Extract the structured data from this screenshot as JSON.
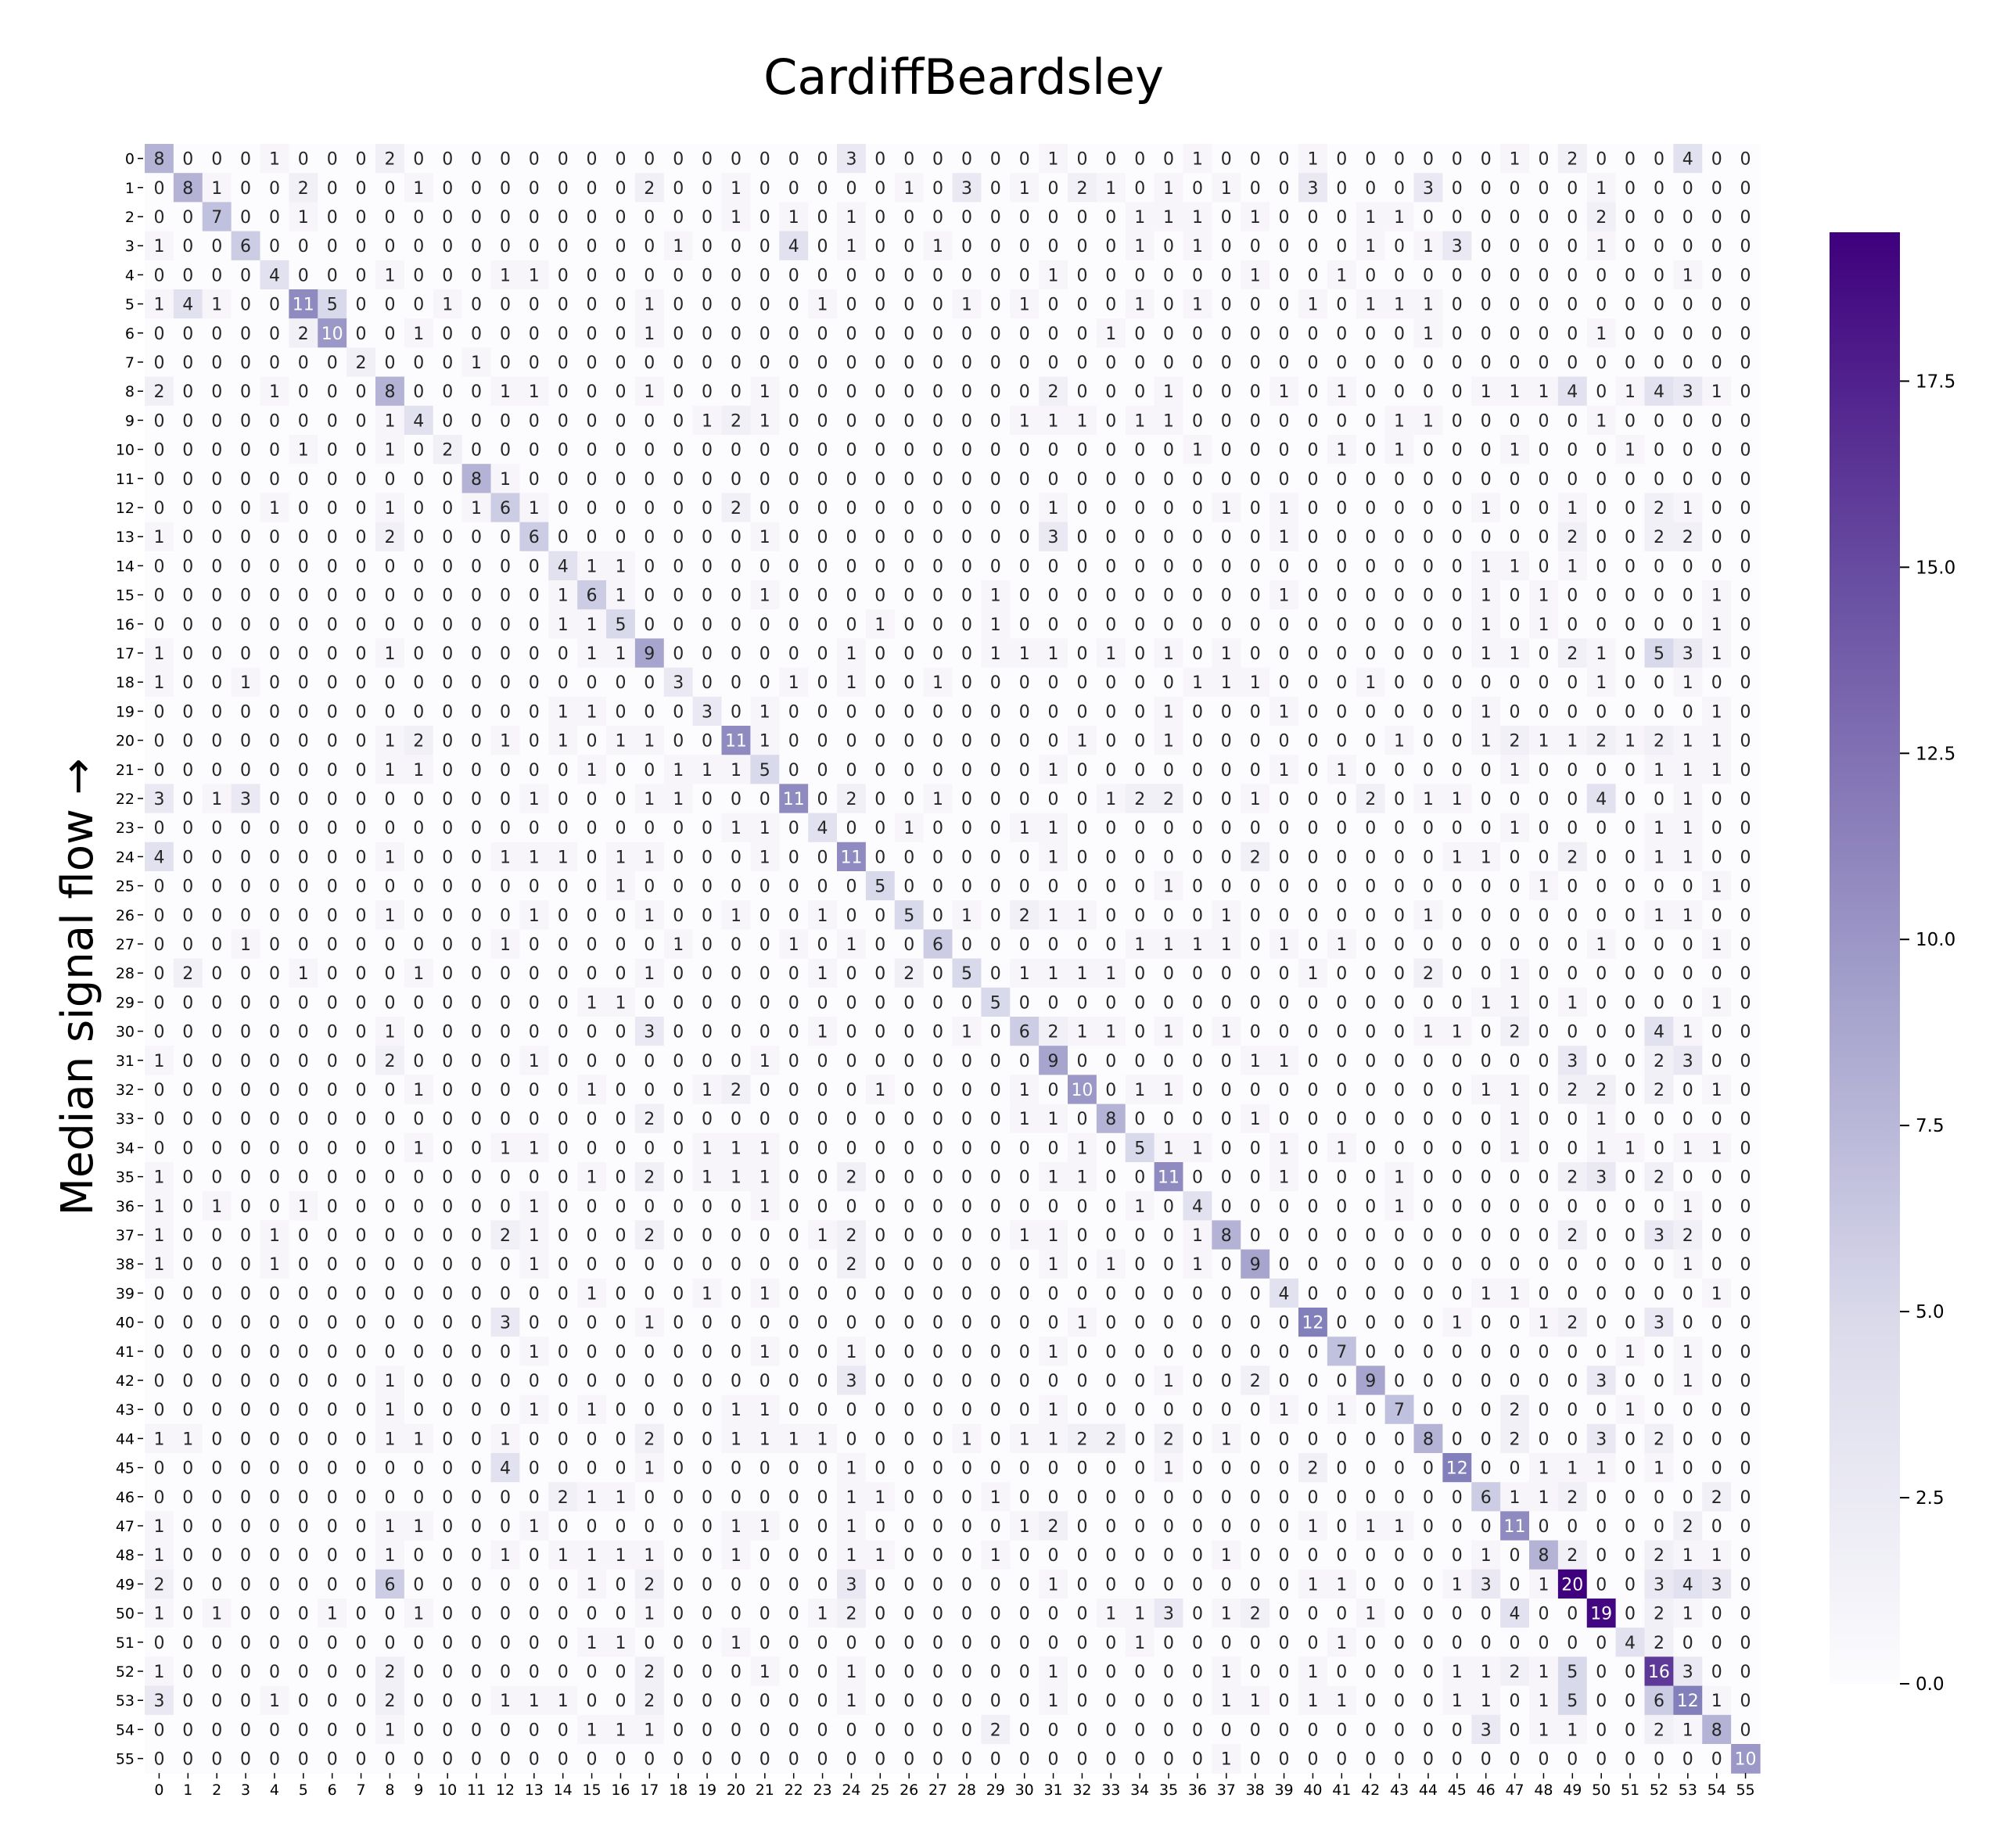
{
  "chart_data": {
    "type": "heatmap",
    "title": "CardiffBeardsley",
    "xlabel": "",
    "ylabel": "Median signal flow →",
    "x_labels": [
      "0",
      "1",
      "2",
      "3",
      "4",
      "5",
      "6",
      "7",
      "8",
      "9",
      "10",
      "11",
      "12",
      "13",
      "14",
      "15",
      "16",
      "17",
      "18",
      "19",
      "20",
      "21",
      "22",
      "23",
      "24",
      "25",
      "26",
      "27",
      "28",
      "29",
      "30",
      "31",
      "32",
      "33",
      "34",
      "35",
      "36",
      "37",
      "38",
      "39",
      "40",
      "41",
      "42",
      "43",
      "44",
      "45",
      "46",
      "47",
      "48",
      "49",
      "50",
      "51",
      "52",
      "53",
      "54",
      "55"
    ],
    "y_labels": [
      "0",
      "1",
      "2",
      "3",
      "4",
      "5",
      "6",
      "7",
      "8",
      "9",
      "10",
      "11",
      "12",
      "13",
      "14",
      "15",
      "16",
      "17",
      "18",
      "19",
      "20",
      "21",
      "22",
      "23",
      "24",
      "25",
      "26",
      "27",
      "28",
      "29",
      "30",
      "31",
      "32",
      "33",
      "34",
      "35",
      "36",
      "37",
      "38",
      "39",
      "40",
      "41",
      "42",
      "43",
      "44",
      "45",
      "46",
      "47",
      "48",
      "49",
      "50",
      "51",
      "52",
      "53",
      "54",
      "55"
    ],
    "colormap": "Purples",
    "color_low": "#fcfbfd",
    "color_high": "#3f007d",
    "vmin": 0,
    "vmax": 19.5,
    "colorbar_ticks": [
      "0.0",
      "2.5",
      "5.0",
      "7.5",
      "10.0",
      "12.5",
      "15.0",
      "17.5"
    ],
    "colorbar_values": [
      0,
      2.5,
      5,
      7.5,
      10,
      12.5,
      15,
      17.5
    ],
    "matrix": [
      "8 0 0 0 1 0 0 0 2 0 0 0 0 0 0 0 0 0 0 0 0 0 0 0 3 0 0 0 0 0 0 1 0 0 0 0 1 0 0 0 1 0 0 0 0 0 0 1 0 2 0 0 0 4 0 0",
      "0 8 1 0 0 2 0 0 0 1 0 0 0 0 0 0 0 2 0 0 1 0 0 0 0 0 1 0 3 0 1 0 2 1 0 1 0 1 0 0 3 0 0 0 3 0 0 0 0 0 1 0 0 0 0 0",
      "0 0 7 0 0 1 0 0 0 0 0 0 0 0 0 0 0 0 0 0 1 0 1 0 1 0 0 0 0 0 0 0 0 0 1 1 1 0 1 0 0 0 1 1 0 0 0 0 0 0 2 0 0 0 0 0",
      "1 0 0 6 0 0 0 0 0 0 0 0 0 0 0 0 0 0 1 0 0 0 4 0 1 0 0 1 0 0 0 0 0 0 1 0 1 0 0 0 0 0 1 0 1 3 0 0 0 0 1 0 0 0 0 0",
      "0 0 0 0 4 0 0 0 1 0 0 0 1 1 0 0 0 0 0 0 0 0 0 0 0 0 0 0 0 0 0 1 0 0 0 0 0 0 1 0 0 1 0 0 0 0 0 0 0 0 0 0 0 1 0 0",
      "1 4 1 0 0 11 5 0 0 0 1 0 0 0 0 0 0 1 0 0 0 0 0 1 0 0 0 0 1 0 1 0 0 0 1 0 1 0 0 0 1 0 1 1 1 0 0 0 0 0 0 0 0 0 0 0",
      "0 0 0 0 0 2 10 0 0 1 0 0 0 0 0 0 0 1 0 0 0 0 0 0 0 0 0 0 0 0 0 0 0 1 0 0 0 0 0 0 0 0 0 0 1 0 0 0 0 0 1 0 0 0 0 0",
      "0 0 0 0 0 0 0 2 0 0 0 1 0 0 0 0 0 0 0 0 0 0 0 0 0 0 0 0 0 0 0 0 0 0 0 0 0 0 0 0 0 0 0 0 0 0 0 0 0 0 0 0 0 0 0 0",
      "2 0 0 0 1 0 0 0 8 0 0 0 1 1 0 0 0 1 0 0 0 1 0 0 0 0 0 0 0 0 0 2 0 0 0 1 0 0 0 1 0 1 0 0 0 0 1 1 1 4 0 1 4 3 1 0",
      "0 0 0 0 0 0 0 0 1 4 0 0 0 0 0 0 0 0 0 1 2 1 0 0 0 0 0 0 0 0 1 1 1 0 1 1 0 0 0 0 0 0 0 1 1 0 0 0 0 0 1 0 0 0 0 0",
      "0 0 0 0 0 1 0 0 1 0 2 0 0 0 0 0 0 0 0 0 0 0 0 0 0 0 0 0 0 0 0 0 0 0 0 0 1 0 0 0 0 1 0 1 0 0 0 1 0 0 0 1 0 0 0 0",
      "0 0 0 0 0 0 0 0 0 0 0 8 1 0 0 0 0 0 0 0 0 0 0 0 0 0 0 0 0 0 0 0 0 0 0 0 0 0 0 0 0 0 0 0 0 0 0 0 0 0 0 0 0 0 0 0",
      "0 0 0 0 1 0 0 0 1 0 0 1 6 1 0 0 0 0 0 0 2 0 0 0 0 0 0 0 0 0 0 1 0 0 0 0 0 1 0 1 0 0 0 0 0 0 1 0 0 1 0 0 2 1 0 0",
      "1 0 0 0 0 0 0 0 2 0 0 0 0 6 0 0 0 0 0 0 0 1 0 0 0 0 0 0 0 0 0 3 0 0 0 0 0 0 0 1 0 0 0 0 0 0 0 0 0 2 0 0 2 2 0 0",
      "0 0 0 0 0 0 0 0 0 0 0 0 0 0 4 1 1 0 0 0 0 0 0 0 0 0 0 0 0 0 0 0 0 0 0 0 0 0 0 0 0 0 0 0 0 0 1 1 0 1 0 0 0 0 0 0",
      "0 0 0 0 0 0 0 0 0 0 0 0 0 0 1 6 1 0 0 0 0 1 0 0 0 0 0 0 0 1 0 0 0 0 0 0 0 0 0 1 0 0 0 0 0 0 1 0 1 0 0 0 0 0 1 0",
      "0 0 0 0 0 0 0 0 0 0 0 0 0 0 1 1 5 0 0 0 0 0 0 0 0 1 0 0 0 1 0 0 0 0 0 0 0 0 0 0 0 0 0 0 0 0 1 0 1 0 0 0 0 0 1 0",
      "1 0 0 0 0 0 0 0 1 0 0 0 0 0 0 1 1 9 0 0 0 0 0 0 1 0 0 0 0 1 1 1 0 1 0 1 0 1 0 0 0 0 0 0 0 0 1 1 0 2 1 0 5 3 1 0",
      "1 0 0 1 0 0 0 0 0 0 0 0 0 0 0 0 0 0 3 0 0 0 1 0 1 0 0 1 0 0 0 0 0 0 0 0 1 1 1 0 0 0 1 0 0 0 0 0 0 0 1 0 0 1 0 0",
      "0 0 0 0 0 0 0 0 0 0 0 0 0 0 1 1 0 0 0 3 0 1 0 0 0 0 0 0 0 0 0 0 0 0 0 1 0 0 0 1 0 0 0 0 0 0 1 0 0 0 0 0 0 0 1 0",
      "0 0 0 0 0 0 0 0 1 2 0 0 1 0 1 0 1 1 0 0 11 1 0 0 0 0 0 0 0 0 0 0 1 0 0 1 0 0 0 0 0 0 0 1 0 0 1 2 1 1 2 1 2 1 1 0",
      "0 0 0 0 0 0 0 0 1 1 0 0 0 0 0 1 0 0 1 1 1 5 0 0 0 0 0 0 0 0 0 1 0 0 0 0 0 0 0 1 0 1 0 0 0 0 0 1 0 0 0 0 1 1 1 0",
      "3 0 1 3 0 0 0 0 0 0 0 0 0 1 0 0 0 1 1 0 0 0 11 0 2 0 0 1 0 0 0 0 0 1 2 2 0 0 1 0 0 0 2 0 1 1 0 0 0 0 4 0 0 1 0 0",
      "0 0 0 0 0 0 0 0 0 0 0 0 0 0 0 0 0 0 0 0 1 1 0 4 0 0 1 0 0 0 1 1 0 0 0 0 0 0 0 0 0 0 0 0 0 0 0 1 0 0 0 0 1 1 0 0",
      "4 0 0 0 0 0 0 0 1 0 0 0 1 1 1 0 1 1 0 0 0 1 0 0 11 0 0 0 0 0 0 1 0 0 0 0 0 0 2 0 0 0 0 0 0 1 1 0 0 2 0 0 1 1 0 0",
      "0 0 0 0 0 0 0 0 0 0 0 0 0 0 0 0 1 0 0 0 0 0 0 0 0 5 0 0 0 0 0 0 0 0 0 1 0 0 0 0 0 0 0 0 0 0 0 0 1 0 0 0 0 0 1 0",
      "0 0 0 0 0 0 0 0 1 0 0 0 0 1 0 0 0 1 0 0 1 0 0 1 0 0 5 0 1 0 2 1 1 0 0 0 0 1 0 0 0 0 0 0 1 0 0 0 0 0 0 0 1 1 0 0",
      "0 0 0 1 0 0 0 0 0 0 0 0 1 0 0 0 0 0 1 0 0 0 1 0 1 0 0 6 0 0 0 0 0 0 1 1 1 1 0 1 0 1 0 0 0 0 0 0 0 0 1 0 0 0 1 0",
      "0 2 0 0 0 1 0 0 0 1 0 0 0 0 0 0 0 1 0 0 0 0 0 1 0 0 2 0 5 0 1 1 1 1 0 0 0 0 0 0 1 0 0 0 2 0 0 1 0 0 0 0 0 0 0 0",
      "0 0 0 0 0 0 0 0 0 0 0 0 0 0 0 1 1 0 0 0 0 0 0 0 0 0 0 0 0 5 0 0 0 0 0 0 0 0 0 0 0 0 0 0 0 0 1 1 0 1 0 0 0 0 1 0",
      "0 0 0 0 0 0 0 0 1 0 0 0 0 0 0 0 0 3 0 0 0 0 0 1 0 0 0 0 1 0 6 2 1 1 0 1 0 1 0 0 0 0 0 0 1 1 0 2 0 0 0 0 4 1 0 0",
      "1 0 0 0 0 0 0 0 2 0 0 0 0 1 0 0 0 0 0 0 0 1 0 0 0 0 0 0 0 0 0 9 0 0 0 0 0 0 1 1 0 0 0 0 0 0 0 0 0 3 0 0 2 3 0 0",
      "0 0 0 0 0 0 0 0 0 1 0 0 0 0 0 1 0 0 0 1 2 0 0 0 0 1 0 0 0 0 1 0 10 0 1 1 0 0 0 0 0 0 0 0 0 0 1 1 0 2 2 0 2 0 1 0",
      "0 0 0 0 0 0 0 0 0 0 0 0 0 0 0 0 0 2 0 0 0 0 0 0 0 0 0 0 0 0 1 1 0 8 0 0 0 0 1 0 0 0 0 0 0 0 0 1 0 0 1 0 0 0 0 0",
      "0 0 0 0 0 0 0 0 0 1 0 0 1 1 0 0 0 0 0 1 1 1 0 0 0 0 0 0 0 0 0 0 1 0 5 1 1 0 0 1 0 1 0 0 0 0 0 1 0 0 1 1 0 1 1 0",
      "1 0 0 0 0 0 0 0 0 0 0 0 0 0 0 1 0 2 0 1 1 1 0 0 2 0 0 0 0 0 0 1 1 0 0 11 0 0 0 1 0 0 0 1 0 0 0 0 0 2 3 0 2 0 0 0",
      "1 0 1 0 0 1 0 0 0 0 0 0 0 1 0 0 0 0 0 0 0 1 0 0 0 0 0 0 0 0 0 0 0 0 1 0 4 0 0 0 0 0 0 1 0 0 0 0 0 0 0 0 0 1 0 0",
      "1 0 0 0 1 0 0 0 0 0 0 0 2 1 0 0 0 2 0 0 0 0 0 1 2 0 0 0 0 0 1 1 0 0 0 0 1 8 0 0 0 0 0 0 0 0 0 0 0 2 0 0 3 2 0 0",
      "1 0 0 0 1 0 0 0 0 0 0 0 0 1 0 0 0 0 0 0 0 0 0 0 2 0 0 0 0 0 0 1 0 1 0 0 1 0 9 0 0 0 0 0 0 0 0 0 0 0 0 0 0 1 0 0",
      "0 0 0 0 0 0 0 0 0 0 0 0 0 0 0 1 0 0 0 1 0 1 0 0 0 0 0 0 0 0 0 0 0 0 0 0 0 0 0 4 0 0 0 0 0 0 1 1 0 0 0 0 0 0 1 0",
      "0 0 0 0 0 0 0 0 0 0 0 0 3 0 0 0 0 1 0 0 0 0 0 0 0 0 0 0 0 0 0 0 1 0 0 0 0 0 0 0 12 0 0 0 0 1 0 0 1 2 0 0 3 0 0 0",
      "0 0 0 0 0 0 0 0 0 0 0 0 0 1 0 0 0 0 0 0 0 1 0 0 1 0 0 0 0 0 0 1 0 0 0 0 0 0 0 0 0 7 0 0 0 0 0 0 0 0 0 1 0 1 0 0",
      "0 0 0 0 0 0 0 0 1 0 0 0 0 0 0 0 0 0 0 0 0 0 0 0 3 0 0 0 0 0 0 0 0 0 0 1 0 0 2 0 0 0 9 0 0 0 0 0 0 0 3 0 0 1 0 0",
      "0 0 0 0 0 0 0 0 1 0 0 0 0 1 0 1 0 0 0 0 1 1 0 0 0 0 0 0 0 0 0 1 0 0 0 0 0 0 0 1 0 1 0 7 0 0 0 2 0 0 0 1 0 0 0 0",
      "1 1 0 0 0 0 0 0 1 1 0 0 1 0 0 0 0 2 0 0 1 1 1 1 0 0 0 0 1 0 1 1 2 2 0 2 0 1 0 0 0 0 0 0 8 0 0 2 0 0 3 0 2 0 0 0",
      "0 0 0 0 0 0 0 0 0 0 0 0 4 0 0 0 0 1 0 0 0 0 0 0 1 0 0 0 0 0 0 0 0 0 0 1 0 0 0 0 2 0 0 0 0 12 0 0 1 1 1 0 1 0 0 0",
      "0 0 0 0 0 0 0 0 0 0 0 0 0 0 2 1 1 0 0 0 0 0 0 0 1 1 0 0 0 1 0 0 0 0 0 0 0 0 0 0 0 0 0 0 0 0 6 1 1 2 0 0 0 0 2 0",
      "1 0 0 0 0 0 0 0 1 1 0 0 0 1 0 0 0 0 0 0 1 1 0 0 1 0 0 0 0 0 1 2 0 0 0 0 0 0 0 0 1 0 1 1 0 0 0 11 0 0 0 0 0 2 0 0",
      "1 0 0 0 0 0 0 0 1 0 0 0 1 0 1 1 1 1 0 0 1 0 0 0 1 1 0 0 0 1 0 0 0 0 0 0 0 1 0 0 0 0 0 0 0 0 1 0 8 2 0 0 2 1 1 0",
      "2 0 0 0 0 0 0 0 6 0 0 0 0 0 0 1 0 2 0 0 0 0 0 0 3 0 0 0 0 0 0 1 0 0 0 0 0 0 0 0 1 1 0 0 0 1 3 0 1 20 0 0 3 4 3 0",
      "1 0 1 0 0 0 1 0 0 1 0 0 0 0 0 0 0 1 0 0 0 0 0 1 2 0 0 0 0 0 0 0 0 1 1 3 0 1 2 0 0 0 1 0 0 0 0 4 0 0 19 0 2 1 0 0",
      "0 0 0 0 0 0 0 0 0 0 0 0 0 0 0 1 1 0 0 0 1 0 0 0 0 0 0 0 0 0 0 0 0 0 1 0 0 0 0 0 0 1 0 0 0 0 0 0 0 0 0 4 2 0 0 0",
      "1 0 0 0 0 0 0 0 2 0 0 0 0 0 0 0 0 2 0 0 0 1 0 0 1 0 0 0 0 0 0 1 0 0 0 0 0 1 0 0 1 0 0 0 0 1 1 2 1 5 0 0 16 3 0 0",
      "3 0 0 0 1 0 0 0 2 0 0 0 1 1 1 0 0 2 0 0 0 0 0 0 1 0 0 0 0 0 0 1 0 0 0 0 0 1 1 0 1 1 0 0 0 1 1 0 1 5 0 0 6 12 1 0",
      "0 0 0 0 0 0 0 0 1 0 0 0 0 0 0 1 1 1 0 0 0 0 0 0 0 0 0 0 0 2 0 0 0 0 0 0 0 0 0 0 0 0 0 0 0 0 3 0 1 1 0 0 2 1 8 0",
      "0 0 0 0 0 0 0 0 0 0 0 0 0 0 0 0 0 0 0 0 0 0 0 0 0 0 0 0 0 0 0 0 0 0 0 0 0 1 0 0 0 0 0 0 0 0 0 0 0 0 0 0 0 0 0 10"
    ]
  }
}
